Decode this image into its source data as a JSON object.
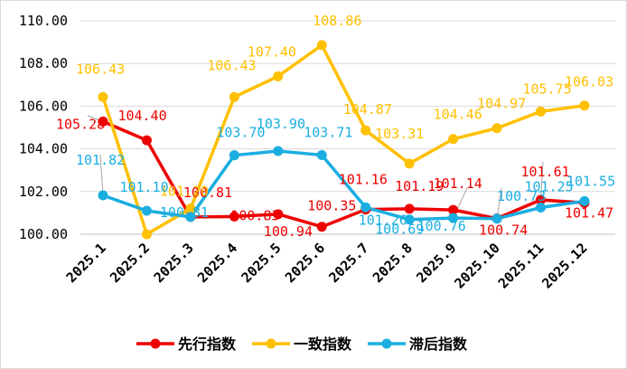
{
  "chart_data": {
    "type": "line",
    "categories": [
      "2025.1",
      "2025.2",
      "2025.3",
      "2025.4",
      "2025.5",
      "2025.6",
      "2025.7",
      "2025.8",
      "2025.9",
      "2025.10",
      "2025.11",
      "2025.12"
    ],
    "ylim": [
      100,
      110
    ],
    "yticks": [
      "100.00",
      "102.00",
      "104.00",
      "106.00",
      "108.00",
      "110.00"
    ],
    "grid": true,
    "legend_position": "bottom",
    "series": [
      {
        "name": "先行指数",
        "color": "#ee0000",
        "values": [
          105.28,
          104.4,
          100.81,
          100.83,
          100.94,
          100.35,
          101.16,
          101.19,
          101.14,
          100.74,
          101.61,
          101.47
        ],
        "labels": [
          "105.28",
          "104.40",
          "100.81",
          "100.83",
          "100.94",
          "100.35",
          "101.16",
          "101.19",
          "101.14",
          "100.74",
          "101.61",
          "101.47"
        ]
      },
      {
        "name": "一致指数",
        "color": "#ffc000",
        "values": [
          106.43,
          100.0,
          101.2,
          106.43,
          107.4,
          108.86,
          104.87,
          103.31,
          104.46,
          104.97,
          105.75,
          106.03
        ],
        "labels": [
          "106.43",
          "",
          "101.20",
          "106.43",
          "107.40",
          "108.86",
          "104.87",
          "103.31",
          "104.46",
          "104.97",
          "105.75",
          "106.03"
        ]
      },
      {
        "name": "滞后指数",
        "color": "#1aaee0",
        "values": [
          101.82,
          101.1,
          100.81,
          103.7,
          103.9,
          103.71,
          101.26,
          100.69,
          100.76,
          100.73,
          101.25,
          101.55
        ],
        "labels": [
          "101.82",
          "101.10",
          "100.81",
          "103.70",
          "103.90",
          "103.71",
          "101.26",
          "100.69",
          "100.76",
          "100.73",
          "101.25",
          "101.55"
        ]
      }
    ]
  }
}
